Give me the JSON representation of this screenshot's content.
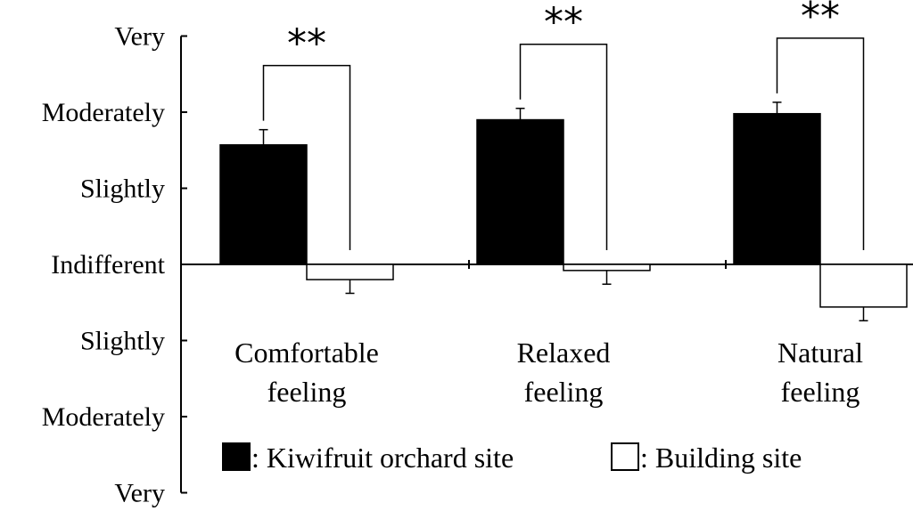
{
  "chart_data": {
    "type": "bar",
    "title": "",
    "xlabel": "",
    "ylabel": "",
    "ylim": [
      -3,
      3
    ],
    "y_ticks": [
      {
        "value": 3,
        "label": "Very"
      },
      {
        "value": 2,
        "label": "Moderately"
      },
      {
        "value": 1,
        "label": "Slightly"
      },
      {
        "value": 0,
        "label": "Indifferent"
      },
      {
        "value": -1,
        "label": "Slightly"
      },
      {
        "value": -2,
        "label": "Moderately"
      },
      {
        "value": -3,
        "label": "Very"
      }
    ],
    "categories": [
      {
        "line1": "Comfortable",
        "line2": "feeling"
      },
      {
        "line1": "Relaxed",
        "line2": "feeling"
      },
      {
        "line1": "Natural",
        "line2": "feeling"
      }
    ],
    "series": [
      {
        "name": "Kiwifruit orchard site",
        "legend_text": ": Kiwifruit orchard site",
        "color": "#000000",
        "values": [
          1.57,
          1.9,
          1.98
        ],
        "errors": [
          0.2,
          0.15,
          0.15
        ]
      },
      {
        "name": "Building site",
        "legend_text": ": Building site",
        "color": "#ffffff",
        "values": [
          -0.2,
          -0.08,
          -0.56
        ],
        "errors": [
          0.18,
          0.18,
          0.18
        ]
      }
    ],
    "significance": [
      "**",
      "**",
      "**"
    ],
    "legend_position": "bottom",
    "grid": false
  }
}
